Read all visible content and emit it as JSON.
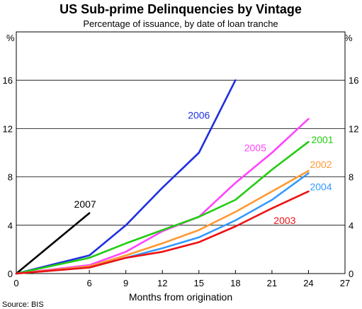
{
  "chart_data": {
    "type": "line",
    "title": "US Sub-prime Delinquencies by Vintage",
    "subtitle": "Percentage of issuance, by date of loan tranche",
    "xlabel": "Months from origination",
    "ylabel_left": "%",
    "ylabel_right": "%",
    "source": "Source: BIS",
    "xlim": [
      0,
      27
    ],
    "ylim": [
      0,
      20
    ],
    "xticks": [
      0,
      6,
      9,
      12,
      15,
      18,
      21,
      24,
      27
    ],
    "yticks": [
      0,
      4,
      8,
      12,
      16
    ],
    "grid": "horizontal",
    "series": [
      {
        "name": "2007",
        "color": "#000000",
        "x": [
          0,
          6
        ],
        "y": [
          0,
          5.0
        ]
      },
      {
        "name": "2006",
        "color": "#1f2fe0",
        "x": [
          0,
          6,
          9,
          12,
          15,
          18
        ],
        "y": [
          0,
          1.5,
          4.0,
          7.1,
          10.0,
          16.0
        ]
      },
      {
        "name": "2005",
        "color": "#ff44ff",
        "x": [
          0,
          6,
          9,
          12,
          15,
          18,
          21,
          24
        ],
        "y": [
          0,
          0.7,
          1.8,
          3.5,
          4.7,
          7.5,
          10.0,
          12.8
        ]
      },
      {
        "name": "2001",
        "color": "#22cc11",
        "x": [
          0,
          6,
          9,
          12,
          15,
          18,
          21,
          24
        ],
        "y": [
          0,
          1.3,
          2.5,
          3.6,
          4.7,
          6.1,
          8.6,
          10.9
        ]
      },
      {
        "name": "2002",
        "color": "#ff9933",
        "x": [
          0,
          6,
          9,
          12,
          15,
          18,
          21,
          24
        ],
        "y": [
          0,
          0.6,
          1.5,
          2.5,
          3.6,
          5.1,
          6.8,
          8.5
        ]
      },
      {
        "name": "2004",
        "color": "#3399ff",
        "x": [
          0,
          6,
          9,
          12,
          15,
          18,
          21,
          24
        ],
        "y": [
          0,
          0.5,
          1.3,
          2.1,
          3.0,
          4.4,
          6.1,
          8.3
        ]
      },
      {
        "name": "2003",
        "color": "#ee1111",
        "x": [
          0,
          6,
          9,
          12,
          15,
          18,
          21,
          24
        ],
        "y": [
          0,
          0.5,
          1.3,
          1.8,
          2.6,
          3.9,
          5.4,
          6.8
        ]
      }
    ]
  }
}
